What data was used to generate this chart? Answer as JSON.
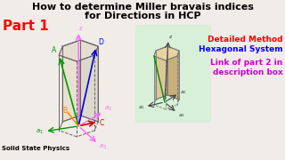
{
  "title_line1": "How to determine Miller bravais indices",
  "title_line2": "for Directions in HCP",
  "part_label": "Part 1",
  "detailed_method": "Detailed Method",
  "hexagonal_system": "Hexagonal System",
  "link_line1": "Link of part 2 in",
  "link_line2": "description box",
  "solid_state": "Solid State Physics",
  "bg_color": "#f0ece8",
  "title_color": "#000000",
  "part_color": "#ff0000",
  "detailed_color": "#ff0000",
  "hexagonal_color": "#0000ff",
  "link_color": "#cc00cc",
  "solid_state_color": "#000000",
  "green_box_color": "#d8efd8",
  "prism_edge_color": "#666666",
  "z_axis_color": "#ff66ff",
  "a1_color": "#009900",
  "a2_color": "#ff66ff",
  "a3_color": "#ff66ff",
  "dir_A_color": "#009900",
  "dir_B_color": "#ff8800",
  "dir_C_color": "#cc0000",
  "dir_D_color": "#cc0000",
  "dir_blue_color": "#0000dd"
}
